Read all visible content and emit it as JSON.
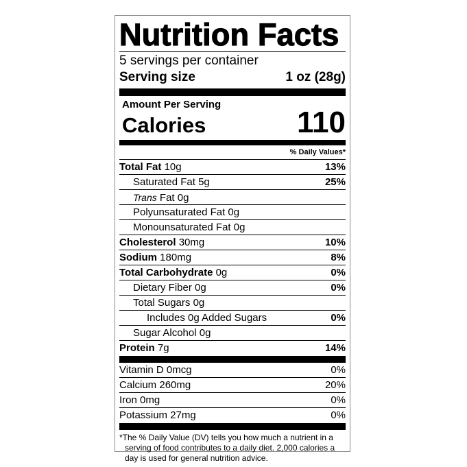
{
  "title": "Nutrition Facts",
  "servings_per_container": "5 servings per container",
  "serving_size": {
    "label": "Serving size",
    "value": "1 oz (28g)"
  },
  "amount_per_serving": "Amount Per Serving",
  "calories": {
    "label": "Calories",
    "value": "110"
  },
  "dv_header": "% Daily Values*",
  "nutrients": [
    {
      "name": "Total Fat",
      "amount": "10g",
      "dv": "13%",
      "bold": true,
      "indent": 0
    },
    {
      "name": "Saturated Fat",
      "amount": "5g",
      "dv": "25%",
      "bold": false,
      "indent": 1
    },
    {
      "name": "Trans",
      "name_suffix": "Fat",
      "amount": "0g",
      "dv": "",
      "bold": false,
      "indent": 1
    },
    {
      "name": "Polyunsaturated Fat",
      "amount": "0g",
      "dv": "",
      "bold": false,
      "indent": 1
    },
    {
      "name": "Monounsaturated Fat",
      "amount": "0g",
      "dv": "",
      "bold": false,
      "indent": 1
    },
    {
      "name": "Cholesterol",
      "amount": "30mg",
      "dv": "10%",
      "bold": true,
      "indent": 0
    },
    {
      "name": "Sodium",
      "amount": "180mg",
      "dv": "8%",
      "bold": true,
      "indent": 0
    },
    {
      "name": "Total Carbohydrate",
      "amount": "0g",
      "dv": "0%",
      "bold": true,
      "indent": 0
    },
    {
      "name": "Dietary Fiber",
      "amount": "0g",
      "dv": "0%",
      "bold": false,
      "indent": 1
    },
    {
      "name": "Total Sugars",
      "amount": "0g",
      "dv": "",
      "bold": false,
      "indent": 1
    },
    {
      "name": "Includes 0g Added Sugars",
      "amount": "",
      "dv": "0%",
      "bold": false,
      "indent": 2
    },
    {
      "name": "Sugar Alcohol",
      "amount": "0g",
      "dv": "",
      "bold": false,
      "indent": 1
    },
    {
      "name": "Protein",
      "amount": "7g",
      "dv": "14%",
      "bold": true,
      "indent": 0
    }
  ],
  "vitamins": [
    {
      "name": "Vitamin D",
      "amount": "0mcg",
      "dv": "0%"
    },
    {
      "name": "Calcium",
      "amount": "260mg",
      "dv": "20%"
    },
    {
      "name": "Iron",
      "amount": "0mg",
      "dv": "0%"
    },
    {
      "name": "Potassium",
      "amount": "27mg",
      "dv": "0%"
    }
  ],
  "footnote": "*The % Daily Value (DV) tells you how much a nutrient in a serving of food contributes to a daily diet. 2,000 calories a day is used for general nutrition advice."
}
